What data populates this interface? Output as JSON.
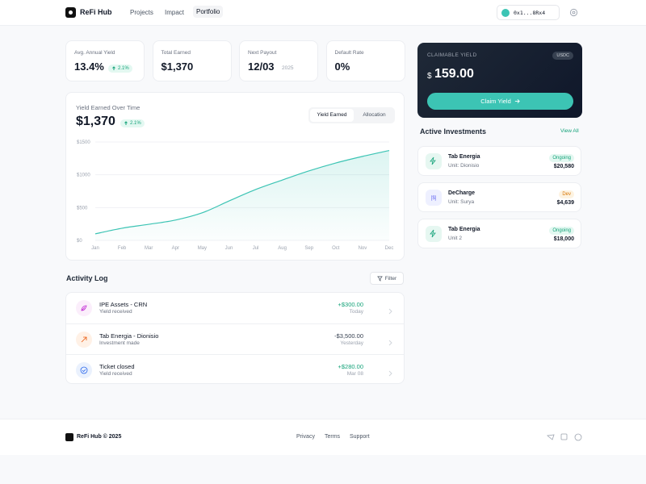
{
  "nav": {
    "brand": "ReFi Hub",
    "links": [
      "Projects",
      "Impact",
      "Portfolio"
    ],
    "wallet": "0x1...8Rx4"
  },
  "stats": [
    {
      "label": "Avg. Annual Yield",
      "value": "13.4%",
      "badge": "2.1%"
    },
    {
      "label": "Total Earned",
      "value": "$1,370"
    },
    {
      "label": "Next Payout",
      "value": "12/03",
      "sub": "2025"
    },
    {
      "label": "Default Rate",
      "value": "0%"
    }
  ],
  "overview": {
    "value": "$1,370",
    "badge": "2.1%",
    "tabs": [
      "Yield Earned",
      "Allocation"
    ]
  },
  "chart_data": {
    "type": "line",
    "title": "Yield Earned Over Time",
    "categories": [
      "Jan",
      "Feb",
      "Mar",
      "Apr",
      "May",
      "Jun",
      "Jul",
      "Aug",
      "Sep",
      "Oct",
      "Nov",
      "Dec"
    ],
    "values": [
      100,
      185,
      245,
      310,
      420,
      600,
      775,
      920,
      1060,
      1180,
      1280,
      1370
    ],
    "color": "#3cc4b4",
    "area": true,
    "grid": true,
    "ylim": [
      0,
      1500
    ],
    "yticks": [
      {
        "value": 0,
        "label": "$0"
      },
      {
        "value": 500,
        "label": "$500"
      },
      {
        "value": 1000,
        "label": "$1000"
      },
      {
        "value": 1500,
        "label": "$1500"
      }
    ]
  },
  "claim": {
    "label": "CLAIMABLE YIELD",
    "currency": "USDC",
    "symbol": "$",
    "amount": "159.00",
    "button": "Claim Yield"
  },
  "investments": {
    "title": "Active Investments",
    "link": "View All",
    "items": [
      {
        "name": "Tab Energia",
        "unit": "Unit: Dionisio",
        "status": "Ongoing",
        "amount": "$20,580"
      },
      {
        "name": "DeCharge",
        "unit": "Unit: Surya",
        "status": "Dev",
        "amount": "$4,639"
      },
      {
        "name": "Tab Energia",
        "unit": "Unit 2",
        "status": "Ongoing",
        "amount": "$18,000"
      }
    ]
  },
  "activity": {
    "title": "Activity Log",
    "filter": "Filter",
    "items": [
      {
        "title": "IPE Assets - CRN",
        "sub": "Yield received",
        "amount": "+$300.00",
        "time": "Today"
      },
      {
        "title": "Tab Energia - Dionisio",
        "sub": "Investment made",
        "amount": "-$3,500.00",
        "time": "Yesterday"
      },
      {
        "title": "Ticket closed",
        "sub": "Yield received",
        "amount": "+$280.00",
        "time": "Mar 08"
      }
    ]
  },
  "footer": {
    "brand": "ReFi Hub © 2025",
    "links": [
      "Privacy",
      "Terms",
      "Support"
    ]
  }
}
